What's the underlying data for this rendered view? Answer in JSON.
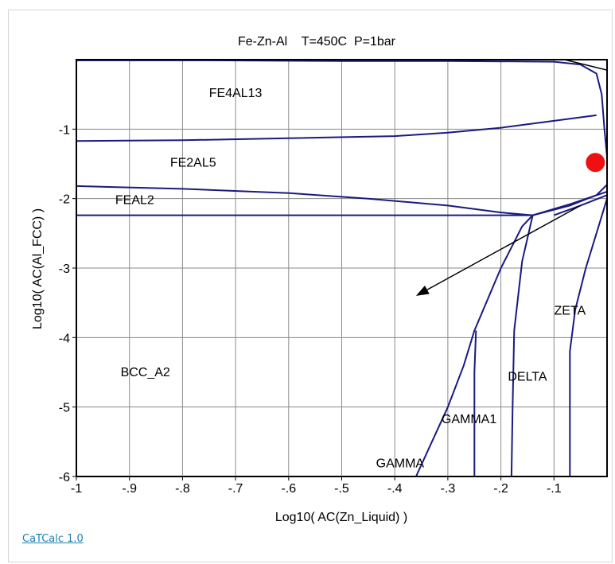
{
  "chart_data": {
    "type": "line",
    "title": "Fe-Zn-Al    T=450C  P=1bar",
    "xlabel": "Log10( AC(Zn_Liquid) )",
    "ylabel": "Log10( AC(Al_FCC) )",
    "xlim": [
      -1,
      0
    ],
    "ylim": [
      -6,
      0
    ],
    "grid": true,
    "x_ticks": [
      {
        "v": -1,
        "label": "-1"
      },
      {
        "v": -0.9,
        "label": "-.9"
      },
      {
        "v": -0.8,
        "label": "-.8"
      },
      {
        "v": -0.7,
        "label": "-.7"
      },
      {
        "v": -0.6,
        "label": "-.6"
      },
      {
        "v": -0.5,
        "label": "-.5"
      },
      {
        "v": -0.4,
        "label": "-.4"
      },
      {
        "v": -0.3,
        "label": "-.3"
      },
      {
        "v": -0.2,
        "label": "-.2"
      },
      {
        "v": -0.1,
        "label": "-.1"
      }
    ],
    "y_ticks": [
      {
        "v": -1,
        "label": "-1"
      },
      {
        "v": -2,
        "label": "-2"
      },
      {
        "v": -3,
        "label": "-3"
      },
      {
        "v": -4,
        "label": "-4"
      },
      {
        "v": -5,
        "label": "-5"
      },
      {
        "v": -6,
        "label": "-6"
      }
    ],
    "phase_labels": [
      {
        "text": "FE4AL13",
        "x": -0.7,
        "y": -0.54
      },
      {
        "text": "FE2AL5",
        "x": -0.78,
        "y": -1.54
      },
      {
        "text": "FEAL2",
        "x": -0.89,
        "y": -2.08
      },
      {
        "text": "BCC_A2",
        "x": -0.87,
        "y": -4.56
      },
      {
        "text": "ZETA",
        "x": -0.07,
        "y": -3.67
      },
      {
        "text": "DELTA",
        "x": -0.15,
        "y": -4.62
      },
      {
        "text": "GAMMA1",
        "x": -0.26,
        "y": -5.23
      },
      {
        "text": "GAMMA",
        "x": -0.39,
        "y": -5.87
      }
    ],
    "boundaries": [
      {
        "name": "FE4AL13 upper",
        "points": [
          [
            -1,
            -0.01
          ],
          [
            -0.75,
            -0.01
          ],
          [
            -0.5,
            -0.02
          ],
          [
            -0.3,
            -0.02
          ],
          [
            -0.1,
            -0.03
          ],
          [
            -0.05,
            -0.07
          ],
          [
            -0.02,
            -0.2
          ],
          [
            -0.01,
            -0.5
          ],
          [
            -0.005,
            -1.0
          ],
          [
            0,
            -1.4
          ]
        ]
      },
      {
        "name": "FE4AL13/FE2AL5",
        "points": [
          [
            -1,
            -1.17
          ],
          [
            -0.8,
            -1.16
          ],
          [
            -0.6,
            -1.13
          ],
          [
            -0.4,
            -1.1
          ],
          [
            -0.3,
            -1.05
          ],
          [
            -0.2,
            -0.98
          ],
          [
            -0.1,
            -0.88
          ],
          [
            -0.02,
            -0.8
          ]
        ]
      },
      {
        "name": "FE2AL5/FEAL2",
        "points": [
          [
            -1,
            -1.82
          ],
          [
            -0.8,
            -1.86
          ],
          [
            -0.6,
            -1.92
          ],
          [
            -0.45,
            -2.0
          ],
          [
            -0.3,
            -2.1
          ],
          [
            -0.2,
            -2.2
          ],
          [
            -0.14,
            -2.24
          ],
          [
            -0.07,
            -2.08
          ],
          [
            0,
            -1.9
          ]
        ]
      },
      {
        "name": "FEAL2/BCC",
        "points": [
          [
            -1,
            -2.24
          ],
          [
            -0.6,
            -2.24
          ],
          [
            -0.3,
            -2.24
          ],
          [
            -0.14,
            -2.24
          ]
        ]
      },
      {
        "name": "FE2AL5 right",
        "points": [
          [
            -0.14,
            -2.24
          ],
          [
            -0.07,
            -2.1
          ],
          [
            -0.02,
            -1.95
          ],
          [
            0,
            -1.8
          ]
        ]
      },
      {
        "name": "BCC/GAMMA",
        "points": [
          [
            -0.36,
            -6
          ],
          [
            -0.33,
            -5.5
          ],
          [
            -0.3,
            -5.0
          ],
          [
            -0.27,
            -4.4
          ],
          [
            -0.25,
            -3.9
          ],
          [
            -0.2,
            -3.0
          ],
          [
            -0.16,
            -2.4
          ],
          [
            -0.14,
            -2.24
          ]
        ]
      },
      {
        "name": "GAMMA/GAMMA1",
        "points": [
          [
            -0.25,
            -6
          ],
          [
            -0.25,
            -4.5
          ],
          [
            -0.247,
            -3.9
          ]
        ]
      },
      {
        "name": "GAMMA1/DELTA",
        "points": [
          [
            -0.18,
            -6
          ],
          [
            -0.178,
            -5.0
          ],
          [
            -0.175,
            -3.9
          ],
          [
            -0.16,
            -2.9
          ],
          [
            -0.14,
            -2.24
          ]
        ]
      },
      {
        "name": "DELTA/ZETA",
        "points": [
          [
            -0.07,
            -6
          ],
          [
            -0.07,
            -4.8
          ],
          [
            -0.07,
            -4.2
          ],
          [
            -0.06,
            -3.6
          ],
          [
            -0.04,
            -3.0
          ],
          [
            -0.02,
            -2.5
          ],
          [
            0,
            -2.0
          ]
        ]
      },
      {
        "name": "ZETA upper",
        "points": [
          [
            -0.1,
            -2.24
          ],
          [
            -0.05,
            -2.1
          ],
          [
            0,
            -1.95
          ]
        ]
      }
    ],
    "corner_line": {
      "points": [
        [
          -0.08,
          0.0
        ],
        [
          0,
          -0.15
        ]
      ]
    },
    "marker": {
      "x": -0.022,
      "y": -1.48,
      "color": "#ee1111"
    },
    "arrow": {
      "from": [
        -0.05,
        -2.1
      ],
      "to": [
        -0.36,
        -3.4
      ],
      "color": "#000000"
    }
  },
  "footer": {
    "link": "CaTCalc 1.0"
  },
  "colors": {
    "curve": "#1a1a80",
    "grid": "#8a8a8a",
    "marker": "#ee1111"
  }
}
